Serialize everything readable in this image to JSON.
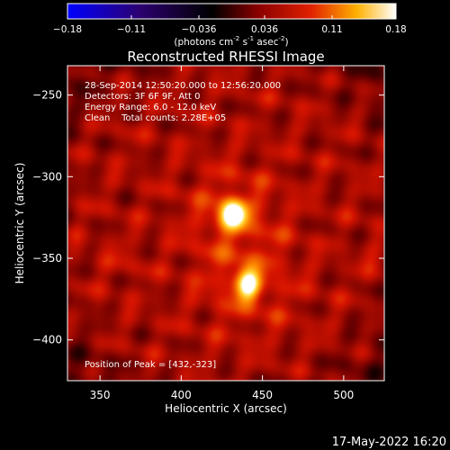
{
  "chart_data": {
    "type": "heatmap",
    "title": "Reconstructed RHESSI Image",
    "xlabel": "Heliocentric X (arcsec)",
    "ylabel": "Heliocentric Y (arcsec)",
    "xlim": [
      330,
      525
    ],
    "ylim": [
      -425,
      -232
    ],
    "xticks": [
      350,
      400,
      450,
      500
    ],
    "yticks": [
      -250,
      -300,
      -350,
      -400
    ],
    "info_lines": [
      "28-Sep-2014 12:50:20.000 to 12:56:20.000",
      "Detectors: 3F 6F 9F, Att 0",
      "Energy Range: 6.0 - 12.0 keV",
      "Clean    Total counts: 2.28E+05"
    ],
    "peak_label": "Position of Peak = [432,-323]",
    "peak_position": [
      432,
      -323
    ],
    "colorbar": {
      "range": [
        -0.18,
        0.18
      ],
      "tick_values": [
        -0.18,
        -0.11,
        -0.036,
        0.036,
        0.11,
        0.18
      ],
      "tick_labels": [
        "-0.18",
        "-0.11",
        "-0.036",
        "0.036",
        "0.11",
        "0.18"
      ],
      "units_text": "(photons cm",
      "units_exp1": "-2",
      "units_mid": " s",
      "units_exp2": "-1",
      "units_mid2": " asec",
      "units_exp3": "-2",
      "units_end": ")"
    },
    "sources": [
      {
        "x": 432,
        "y": -323,
        "amplitude": 0.18
      },
      {
        "x": 441,
        "y": -366,
        "amplitude": 0.145
      }
    ]
  },
  "timestamp": "17-May-2022 16:20",
  "colors": {
    "background": "#000000",
    "axis": "#ffffff",
    "colormap_stops": [
      "#0000ff",
      "#000000",
      "#7a0000",
      "#e01600",
      "#ffb000",
      "#ffffe8"
    ]
  }
}
